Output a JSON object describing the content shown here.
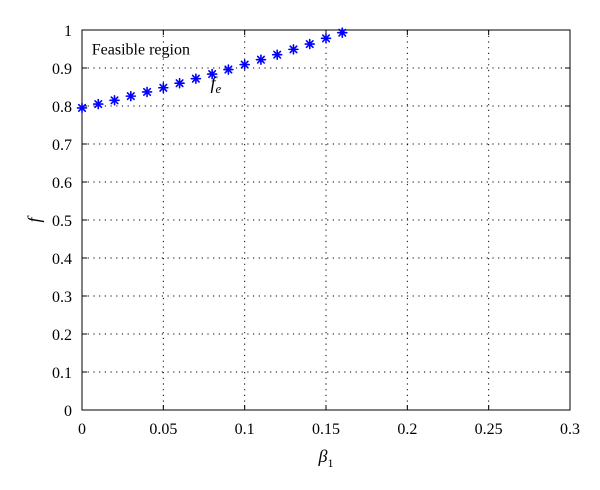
{
  "chart_data": {
    "type": "scatter",
    "xlabel_symbol": "β",
    "xlabel_subscript": "1",
    "ylabel": "f",
    "xlim": [
      0,
      0.3
    ],
    "ylim": [
      0,
      1
    ],
    "x_ticks": [
      "0",
      "0.05",
      "0.1",
      "0.15",
      "0.2",
      "0.25",
      "0.3"
    ],
    "y_ticks": [
      "0",
      "0.1",
      "0.2",
      "0.3",
      "0.4",
      "0.5",
      "0.6",
      "0.7",
      "0.8",
      "0.9",
      "1"
    ],
    "grid": true,
    "marker": "asterisk",
    "color": "#0000ff",
    "annotations": [
      {
        "text": "Feasible region",
        "x": 0.006,
        "y": 0.935
      },
      {
        "text_symbol": "f",
        "text_subscript": "e",
        "x": 0.079,
        "y": 0.845
      }
    ],
    "series": [
      {
        "x": [
          0,
          0.01,
          0.02,
          0.03,
          0.04,
          0.05,
          0.06,
          0.07,
          0.08,
          0.09,
          0.1,
          0.11,
          0.12,
          0.13,
          0.14,
          0.15,
          0.16
        ],
        "y": [
          0.795,
          0.805,
          0.815,
          0.826,
          0.837,
          0.848,
          0.86,
          0.872,
          0.884,
          0.896,
          0.909,
          0.922,
          0.935,
          0.949,
          0.963,
          0.978,
          0.993
        ]
      }
    ]
  }
}
